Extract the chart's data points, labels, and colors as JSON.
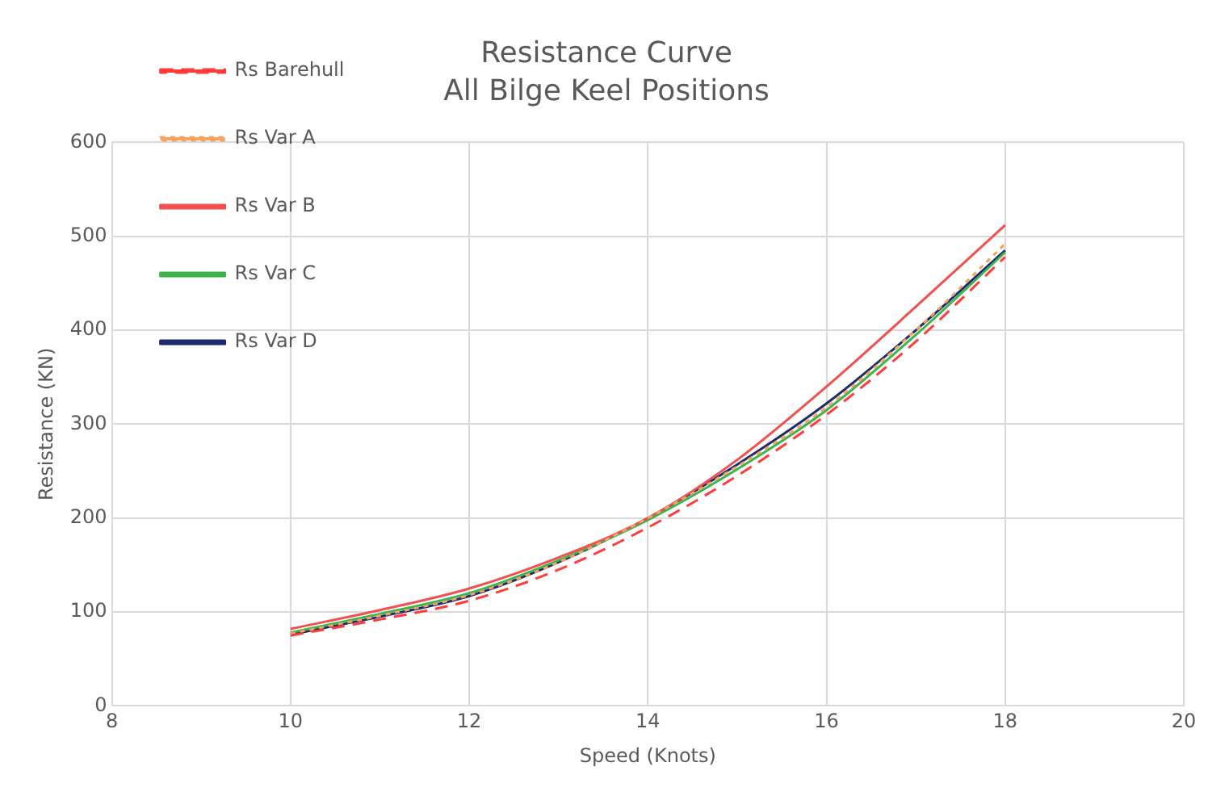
{
  "chart_data": {
    "type": "line",
    "title": "Resistance Curve",
    "subtitle": "All Bilge Keel Positions",
    "xlabel": "Speed (Knots)",
    "ylabel": "Resistance (KN)",
    "xlim": [
      8,
      20
    ],
    "xticks": [
      8,
      10,
      12,
      14,
      16,
      18,
      20
    ],
    "ylim": [
      0,
      600
    ],
    "yticks": [
      0,
      100,
      200,
      300,
      400,
      500,
      600
    ],
    "grid": true,
    "legend": "top left",
    "marker": "none",
    "series": [
      {
        "name": "Rs Barehull",
        "color": "#ff3b3b",
        "line_style": "dashed",
        "x": [
          10,
          11,
          12,
          13,
          14,
          15,
          16,
          17,
          18
        ],
        "values": [
          75,
          92,
          112,
          145,
          190,
          245,
          310,
          388,
          478
        ]
      },
      {
        "name": "Rs Var A",
        "color": "#f4a460",
        "line_style": "dotted",
        "x": [
          10,
          11,
          12,
          13,
          14,
          15,
          16,
          17,
          18
        ],
        "values": [
          77,
          96,
          118,
          153,
          200,
          255,
          318,
          400,
          492
        ]
      },
      {
        "name": "Rs Var B",
        "color": "#f05050",
        "line_style": "solid",
        "x": [
          10,
          11,
          12,
          13,
          14,
          15,
          16,
          17,
          18
        ],
        "values": [
          82,
          102,
          125,
          158,
          200,
          262,
          340,
          425,
          512
        ]
      },
      {
        "name": "Rs Var C",
        "color": "#3cb44b",
        "line_style": "solid",
        "x": [
          10,
          11,
          12,
          13,
          14,
          15,
          16,
          17,
          18
        ],
        "values": [
          78,
          98,
          120,
          155,
          198,
          252,
          315,
          395,
          483
        ]
      },
      {
        "name": "Rs Var D",
        "color": "#1f2a6e",
        "line_style": "solid",
        "x": [
          10,
          11,
          12,
          13,
          14,
          15,
          16,
          17,
          18
        ],
        "values": [
          76,
          95,
          117,
          153,
          200,
          257,
          322,
          400,
          485
        ]
      }
    ]
  }
}
